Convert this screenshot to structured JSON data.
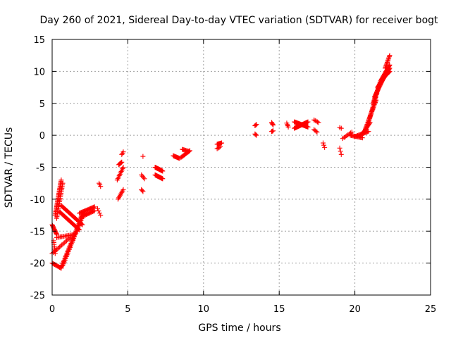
{
  "chart_data": {
    "type": "scatter",
    "title": "Day 260 of 2021, Sidereal Day-to-day VTEC variation (SDTVAR) for receiver bogt",
    "xlabel": "GPS time / hours",
    "ylabel": "SDTVAR / TECUs",
    "xlim": [
      0,
      25
    ],
    "ylim": [
      -25,
      15
    ],
    "xticks": [
      0,
      5,
      10,
      15,
      20,
      25
    ],
    "yticks": [
      -25,
      -20,
      -15,
      -10,
      -5,
      0,
      5,
      10,
      15
    ],
    "grid": true,
    "marker": "+",
    "color": "#ff0000",
    "series": [
      {
        "name": "SDTVAR",
        "tracks": [
          {
            "from": [
              0.0,
              -14.0
            ],
            "to": [
              0.3,
              -15.5
            ],
            "n": 12
          },
          {
            "from": [
              0.1,
              -16.5
            ],
            "to": [
              0.2,
              -18.5
            ],
            "n": 8
          },
          {
            "from": [
              0.0,
              -20.0
            ],
            "to": [
              0.6,
              -20.8
            ],
            "n": 12
          },
          {
            "from": [
              0.0,
              -18.5
            ],
            "to": [
              1.2,
              -16.0
            ],
            "n": 16
          },
          {
            "from": [
              0.3,
              -16.0
            ],
            "to": [
              1.5,
              -15.5
            ],
            "n": 16
          },
          {
            "from": [
              0.6,
              -20.7
            ],
            "to": [
              2.0,
              -12.5
            ],
            "n": 44
          },
          {
            "from": [
              0.7,
              -20.4
            ],
            "to": [
              2.1,
              -12.2
            ],
            "n": 30
          },
          {
            "from": [
              0.2,
              -12.5
            ],
            "to": [
              0.6,
              -7.0
            ],
            "n": 30
          },
          {
            "from": [
              0.3,
              -13.0
            ],
            "to": [
              0.7,
              -7.5
            ],
            "n": 22
          },
          {
            "from": [
              0.5,
              -12.0
            ],
            "to": [
              1.8,
              -14.8
            ],
            "n": 26
          },
          {
            "from": [
              0.6,
              -11.0
            ],
            "to": [
              2.0,
              -14.0
            ],
            "n": 26
          },
          {
            "from": [
              1.8,
              -12.2
            ],
            "to": [
              2.8,
              -11.2
            ],
            "n": 20
          },
          {
            "from": [
              1.9,
              -12.8
            ],
            "to": [
              2.8,
              -11.8
            ],
            "n": 16
          },
          {
            "from": [
              3.0,
              -11.5
            ],
            "to": [
              3.2,
              -12.5
            ],
            "n": 4
          },
          {
            "from": [
              3.1,
              -7.5
            ],
            "to": [
              3.2,
              -8.0
            ],
            "n": 3
          },
          {
            "from": [
              4.4,
              -4.6
            ],
            "to": [
              4.6,
              -4.2
            ],
            "n": 6
          },
          {
            "from": [
              4.6,
              -3.0
            ],
            "to": [
              4.7,
              -2.6
            ],
            "n": 3
          },
          {
            "from": [
              4.3,
              -7.0
            ],
            "to": [
              4.7,
              -5.0
            ],
            "n": 10
          },
          {
            "from": [
              4.35,
              -10.0
            ],
            "to": [
              4.7,
              -8.5
            ],
            "n": 8
          },
          {
            "from": [
              5.9,
              -8.5
            ],
            "to": [
              6.0,
              -8.8
            ],
            "n": 3
          },
          {
            "from": [
              5.9,
              -6.2
            ],
            "to": [
              6.1,
              -6.8
            ],
            "n": 4
          },
          {
            "from": [
              6.0,
              -3.3
            ],
            "to": [
              6.0,
              -3.3
            ],
            "n": 1
          },
          {
            "from": [
              6.8,
              -5.0
            ],
            "to": [
              7.3,
              -5.6
            ],
            "n": 16
          },
          {
            "from": [
              6.8,
              -6.2
            ],
            "to": [
              7.3,
              -6.8
            ],
            "n": 16
          },
          {
            "from": [
              8.0,
              -3.2
            ],
            "to": [
              8.4,
              -3.6
            ],
            "n": 10
          },
          {
            "from": [
              8.5,
              -3.5
            ],
            "to": [
              9.1,
              -2.4
            ],
            "n": 12
          },
          {
            "from": [
              8.6,
              -2.2
            ],
            "to": [
              9.0,
              -2.5
            ],
            "n": 8
          },
          {
            "from": [
              10.9,
              -1.4
            ],
            "to": [
              11.2,
              -1.2
            ],
            "n": 8
          },
          {
            "from": [
              10.9,
              -2.1
            ],
            "to": [
              11.1,
              -1.8
            ],
            "n": 4
          },
          {
            "from": [
              13.4,
              1.5
            ],
            "to": [
              13.5,
              1.7
            ],
            "n": 3
          },
          {
            "from": [
              13.4,
              0.2
            ],
            "to": [
              13.5,
              0.0
            ],
            "n": 3
          },
          {
            "from": [
              14.5,
              2.0
            ],
            "to": [
              14.6,
              1.6
            ],
            "n": 4
          },
          {
            "from": [
              14.5,
              0.6
            ],
            "to": [
              14.6,
              0.7
            ],
            "n": 3
          },
          {
            "from": [
              15.5,
              1.9
            ],
            "to": [
              15.6,
              1.3
            ],
            "n": 4
          },
          {
            "from": [
              16.0,
              1.1
            ],
            "to": [
              16.9,
              2.1
            ],
            "n": 24
          },
          {
            "from": [
              16.0,
              2.1
            ],
            "to": [
              16.9,
              1.3
            ],
            "n": 24
          },
          {
            "from": [
              17.3,
              2.4
            ],
            "to": [
              17.6,
              2.0
            ],
            "n": 5
          },
          {
            "from": [
              17.3,
              0.9
            ],
            "to": [
              17.5,
              0.5
            ],
            "n": 4
          },
          {
            "from": [
              17.9,
              -1.2
            ],
            "to": [
              18.0,
              -1.9
            ],
            "n": 3
          },
          {
            "from": [
              19.0,
              1.2
            ],
            "to": [
              19.1,
              1.1
            ],
            "n": 2
          },
          {
            "from": [
              19.0,
              -2.0
            ],
            "to": [
              19.1,
              -3.0
            ],
            "n": 3
          },
          {
            "from": [
              19.2,
              -0.5
            ],
            "to": [
              19.8,
              0.5
            ],
            "n": 8
          },
          {
            "from": [
              19.7,
              0.0
            ],
            "to": [
              20.5,
              -0.4
            ],
            "n": 14
          },
          {
            "from": [
              20.0,
              -0.2
            ],
            "to": [
              20.9,
              0.6
            ],
            "n": 16
          },
          {
            "from": [
              20.5,
              0.2
            ],
            "to": [
              21.0,
              2.0
            ],
            "n": 14
          },
          {
            "from": [
              20.7,
              1.0
            ],
            "to": [
              21.4,
              5.5
            ],
            "n": 26
          },
          {
            "from": [
              20.9,
              2.0
            ],
            "to": [
              21.5,
              7.0
            ],
            "n": 24
          },
          {
            "from": [
              21.2,
              5.0
            ],
            "to": [
              21.7,
              8.5
            ],
            "n": 22
          },
          {
            "from": [
              21.3,
              6.0
            ],
            "to": [
              21.9,
              9.0
            ],
            "n": 22
          },
          {
            "from": [
              21.5,
              7.5
            ],
            "to": [
              22.2,
              10.0
            ],
            "n": 22
          },
          {
            "from": [
              21.7,
              8.5
            ],
            "to": [
              22.3,
              11.0
            ],
            "n": 20
          },
          {
            "from": [
              21.9,
              9.0
            ],
            "to": [
              22.3,
              10.5
            ],
            "n": 14
          },
          {
            "from": [
              22.0,
              10.5
            ],
            "to": [
              22.3,
              12.5
            ],
            "n": 12
          },
          {
            "from": [
              22.1,
              9.5
            ],
            "to": [
              22.3,
              10.0
            ],
            "n": 6
          }
        ]
      }
    ]
  }
}
